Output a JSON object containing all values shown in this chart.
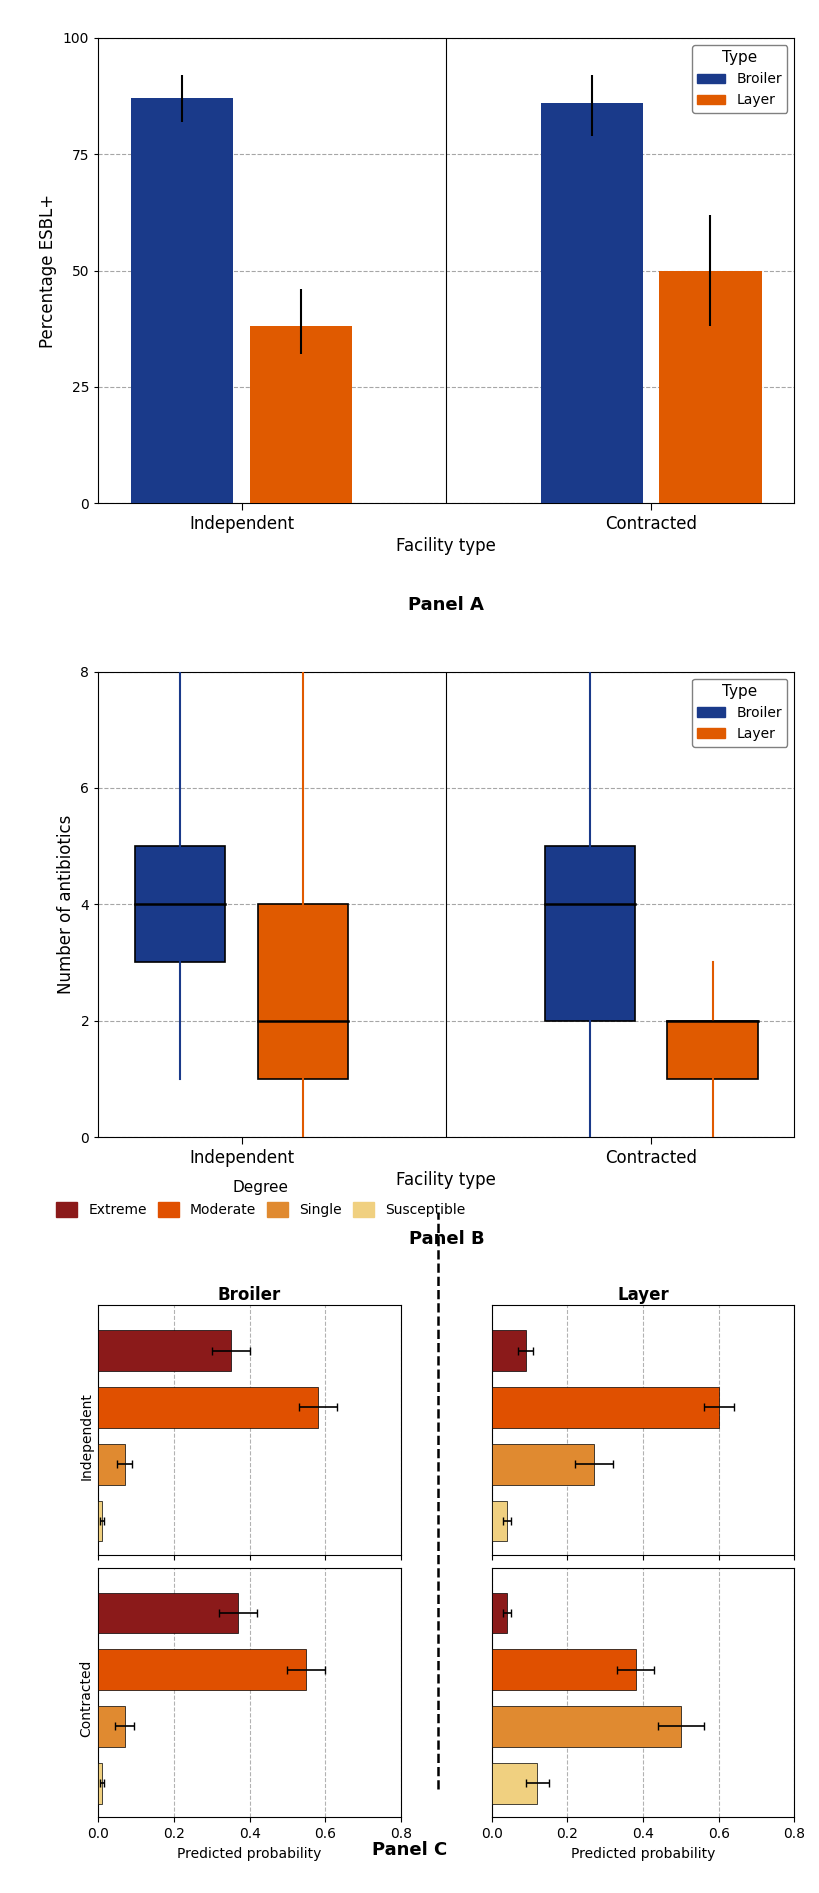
{
  "panelA": {
    "broiler_color": "#1a3a8a",
    "layer_color": "#e05a00",
    "independent_broiler_mean": 87,
    "independent_layer_mean": 38,
    "contracted_broiler_mean": 86,
    "contracted_layer_mean": 50,
    "independent_broiler_err": [
      5,
      5
    ],
    "independent_layer_err": [
      6,
      8
    ],
    "contracted_broiler_err": [
      7,
      6
    ],
    "contracted_layer_err": [
      12,
      12
    ],
    "ylim": [
      0,
      100
    ],
    "yticks": [
      0,
      25,
      50,
      75,
      100
    ],
    "ylabel": "Percentage ESBL+",
    "xlabel": "Facility type",
    "title": "Panel A",
    "xtick_labels": [
      "Independent",
      "Contracted"
    ]
  },
  "panelB": {
    "broiler_color": "#1a3a8a",
    "layer_color": "#e05a00",
    "ind_broiler": {
      "min": 1,
      "q1": 3,
      "median": 4,
      "q3": 5,
      "max": 8
    },
    "ind_layer": {
      "min": 0,
      "q1": 1,
      "median": 2,
      "q3": 4,
      "max": 8
    },
    "con_broiler": {
      "min": 0,
      "q1": 2,
      "median": 4,
      "q3": 5,
      "max": 8
    },
    "con_layer": {
      "min": 0,
      "q1": 1,
      "median": 2,
      "q3": 2,
      "max": 3
    },
    "ylim": [
      0,
      8
    ],
    "yticks": [
      0,
      2,
      4,
      6,
      8
    ],
    "ylabel": "Number of antibiotics",
    "xlabel": "Facility type",
    "title": "Panel B",
    "xtick_labels": [
      "Independent",
      "Contracted"
    ]
  },
  "panelC": {
    "extreme_color": "#8b1a1a",
    "moderate_color": "#e05000",
    "single_color": "#e08a30",
    "susceptible_color": "#f0d080",
    "broiler": {
      "independent": {
        "extreme": {
          "val": 0.35,
          "err": 0.05
        },
        "moderate": {
          "val": 0.58,
          "err": 0.05
        },
        "single": {
          "val": 0.07,
          "err": 0.02
        },
        "susceptible": {
          "val": 0.01,
          "err": 0.005
        }
      },
      "contracted": {
        "extreme": {
          "val": 0.37,
          "err": 0.05
        },
        "moderate": {
          "val": 0.55,
          "err": 0.05
        },
        "single": {
          "val": 0.07,
          "err": 0.025
        },
        "susceptible": {
          "val": 0.01,
          "err": 0.005
        }
      }
    },
    "layer": {
      "independent": {
        "extreme": {
          "val": 0.09,
          "err": 0.02
        },
        "moderate": {
          "val": 0.6,
          "err": 0.04
        },
        "single": {
          "val": 0.27,
          "err": 0.05
        },
        "susceptible": {
          "val": 0.04,
          "err": 0.01
        }
      },
      "contracted": {
        "extreme": {
          "val": 0.04,
          "err": 0.01
        },
        "moderate": {
          "val": 0.38,
          "err": 0.05
        },
        "single": {
          "val": 0.5,
          "err": 0.06
        },
        "susceptible": {
          "val": 0.12,
          "err": 0.03
        }
      }
    },
    "xlim": [
      0,
      0.8
    ],
    "xticks": [
      0.0,
      0.2,
      0.4,
      0.6,
      0.8
    ],
    "xlabel": "Predicted probability",
    "degree_labels": [
      "Extreme",
      "Moderate",
      "Single",
      "Susceptible"
    ]
  }
}
